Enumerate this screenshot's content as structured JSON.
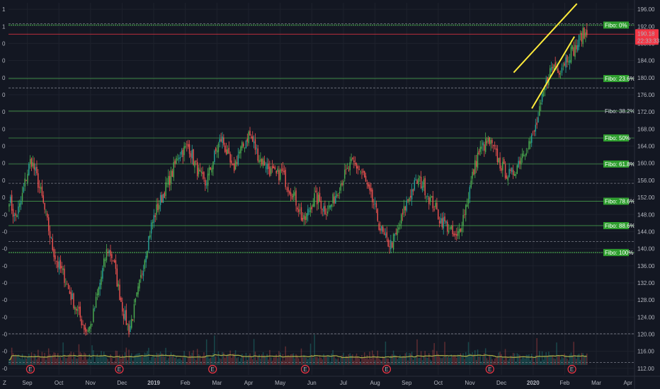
{
  "chart_data": {
    "type": "candlestick",
    "title": "",
    "y_axis": {
      "ticks": [
        196,
        192,
        188,
        184,
        180,
        176,
        172,
        168,
        164,
        160,
        156,
        152,
        148,
        144,
        140,
        136,
        132,
        128,
        124,
        120,
        116,
        112
      ],
      "labels": [
        "196.00",
        "192.00",
        "188.00",
        "184.00",
        "180.00",
        "176.00",
        "172.00",
        "168.00",
        "164.00",
        "160.00",
        "156.00",
        "152.00",
        "148.00",
        "144.00",
        "140.00",
        "136.00",
        "132.00",
        "128.00",
        "124.00",
        "120.00",
        "116.00",
        "112.00"
      ],
      "ylim": [
        110.5,
        197.5
      ]
    },
    "left_axis_labels": [
      "1",
      "1",
      "0",
      "0",
      "0",
      "0",
      "0",
      "0",
      "0",
      "0",
      "0",
      "0",
      "-0",
      "-0",
      "-0",
      "-0",
      "-0",
      "-0",
      "-0",
      "-0",
      "-0",
      "-0"
    ],
    "x_axis": {
      "labels": [
        "Sep",
        "Oct",
        "Nov",
        "Dec",
        "2019",
        "Feb",
        "Mar",
        "Apr",
        "May",
        "Jun",
        "Jul",
        "Aug",
        "Sep",
        "Oct",
        "Nov",
        "Dec",
        "2020",
        "Feb",
        "Mar",
        "Apr"
      ],
      "bold": [
        "2019",
        "2020"
      ],
      "corner_label": "Z"
    },
    "current_price": {
      "price_label": "190.18",
      "countdown": "22:33:33",
      "value": 190.18,
      "color": "#f23645"
    },
    "fibonacci": {
      "color_line": "#4caf50",
      "color_label_bg": "#2e9e2e",
      "levels": [
        {
          "label": "Fibo:  0%",
          "price": 192.3
        },
        {
          "label": "Fibo: 23.6%",
          "price": 179.8
        },
        {
          "label": "Fibo: 38.2%",
          "price": 172.2
        },
        {
          "label": "Fibo:  50%",
          "price": 165.9
        },
        {
          "label": "Fibo: 61.8%",
          "price": 159.8
        },
        {
          "label": "Fibo: 78.6%",
          "price": 151.1
        },
        {
          "label": "Fibo: 88.6%",
          "price": 145.4
        },
        {
          "label": "Fibo: 100%",
          "price": 139.1
        }
      ]
    },
    "dashed_levels": [
      192.6,
      177.6,
      155.3,
      141.7,
      120.1,
      113.4
    ],
    "trend_lines": {
      "color": "#ffeb3b",
      "lines": [
        {
          "from": [
            0.807,
            181.2
          ],
          "to": [
            0.908,
            197.3
          ]
        },
        {
          "from": [
            0.836,
            172.8
          ],
          "to": [
            0.904,
            189.6
          ]
        }
      ]
    },
    "earnings_markers": {
      "label": "E",
      "positions": [
        0.035,
        0.177,
        0.326,
        0.474,
        0.604,
        0.769,
        0.9
      ]
    },
    "volume_avg_color": "#a4a846",
    "colors": {
      "up": "#26a69a",
      "up_bright": "#4caf50",
      "down": "#ef5350",
      "background": "#131722",
      "grid": "#1e222d"
    },
    "candles_seed": [
      152,
      147,
      150,
      156,
      161,
      157,
      152,
      146,
      140,
      136,
      134,
      130,
      127,
      124,
      121,
      122,
      128,
      134,
      140,
      138,
      131,
      125,
      121,
      126,
      132,
      139,
      145,
      149,
      152,
      155,
      158,
      162,
      163,
      164,
      160,
      157,
      155,
      159,
      163,
      166,
      162,
      158,
      162,
      164,
      167,
      164,
      161,
      160,
      158,
      157,
      158,
      155,
      153,
      150,
      146,
      149,
      152,
      151,
      149,
      150,
      153,
      156,
      158,
      160,
      159,
      157,
      153,
      150,
      145,
      142,
      141,
      143,
      147,
      151,
      154,
      156,
      155,
      152,
      150,
      147,
      146,
      144,
      142,
      146,
      151,
      157,
      162,
      164,
      165,
      163,
      160,
      158,
      157,
      159,
      162,
      164,
      166,
      170,
      176,
      181,
      183,
      182,
      184,
      186,
      187,
      190,
      190.2
    ]
  }
}
